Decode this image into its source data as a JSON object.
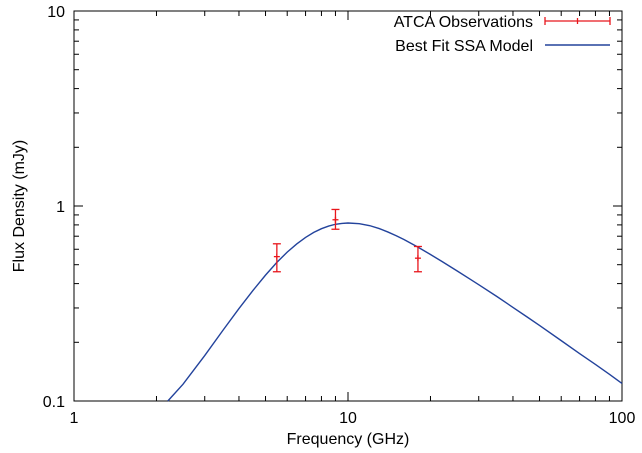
{
  "chart_data": {
    "type": "scatter",
    "title": "",
    "xlabel": "Frequency (GHz)",
    "ylabel": "Flux Density (mJy)",
    "xscale": "log",
    "yscale": "log",
    "xlim": [
      1,
      100
    ],
    "ylim": [
      0.1,
      10
    ],
    "xticks": [
      {
        "value": 1,
        "label": "1"
      },
      {
        "value": 10,
        "label": "10"
      },
      {
        "value": 100,
        "label": "100"
      }
    ],
    "yticks": [
      {
        "value": 0.1,
        "label": "0.1"
      },
      {
        "value": 1,
        "label": "1"
      },
      {
        "value": 10,
        "label": "10"
      }
    ],
    "grid": false,
    "legend_position": "top-right",
    "series": [
      {
        "name": "ATCA Observations",
        "kind": "points-with-errorbars",
        "color": "#e8161c",
        "points": [
          {
            "x": 5.5,
            "y": 0.55,
            "yerr_low": 0.46,
            "yerr_high": 0.64
          },
          {
            "x": 9.0,
            "y": 0.85,
            "yerr_low": 0.76,
            "yerr_high": 0.96
          },
          {
            "x": 18.0,
            "y": 0.54,
            "yerr_low": 0.46,
            "yerr_high": 0.62
          }
        ]
      },
      {
        "name": "Best Fit SSA Model",
        "kind": "line",
        "color": "#23439c",
        "x": [
          2.2,
          2.5,
          3,
          3.5,
          4,
          4.5,
          5,
          5.5,
          6,
          6.5,
          7,
          7.5,
          8,
          8.5,
          9,
          9.5,
          10,
          11,
          12,
          13,
          14,
          15,
          16,
          18,
          20,
          22,
          25,
          28,
          30,
          35,
          40,
          45,
          50,
          60,
          70,
          80,
          90,
          100
        ],
        "y": [
          0.1,
          0.122,
          0.171,
          0.231,
          0.298,
          0.369,
          0.442,
          0.514,
          0.58,
          0.639,
          0.69,
          0.732,
          0.765,
          0.789,
          0.806,
          0.814,
          0.818,
          0.812,
          0.793,
          0.766,
          0.735,
          0.704,
          0.673,
          0.615,
          0.564,
          0.52,
          0.465,
          0.42,
          0.395,
          0.343,
          0.302,
          0.27,
          0.244,
          0.204,
          0.175,
          0.154,
          0.137,
          0.123
        ]
      }
    ]
  }
}
